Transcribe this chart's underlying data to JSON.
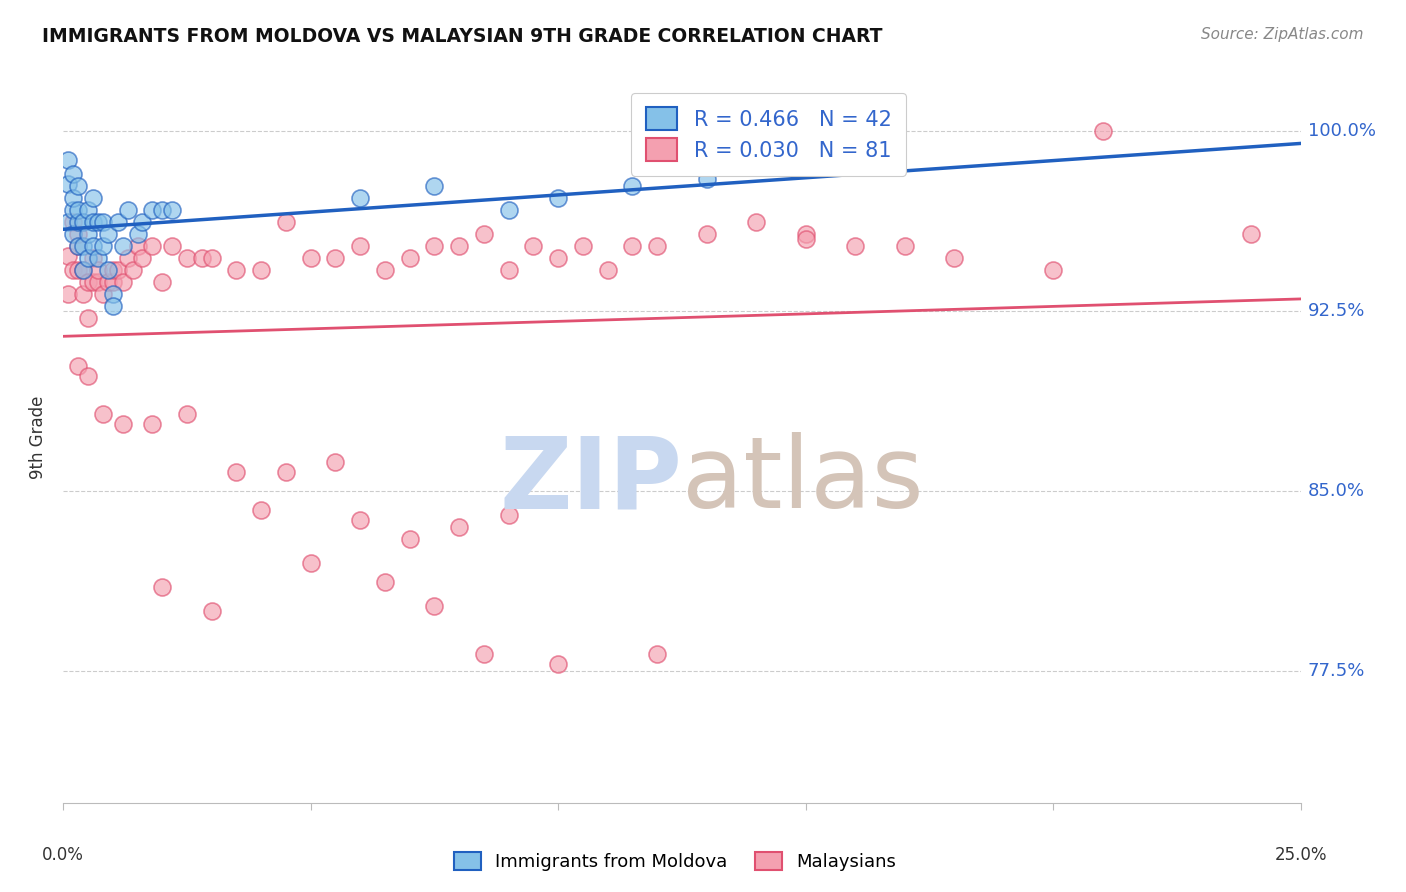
{
  "title": "IMMIGRANTS FROM MOLDOVA VS MALAYSIAN 9TH GRADE CORRELATION CHART",
  "source": "Source: ZipAtlas.com",
  "ylabel": "9th Grade",
  "legend1_label": "Immigrants from Moldova",
  "legend2_label": "Malaysians",
  "R1": 0.466,
  "N1": 42,
  "R2": 0.03,
  "N2": 81,
  "color_blue": "#85c1e8",
  "color_pink": "#f4a0b0",
  "color_blue_line": "#2060c0",
  "color_pink_line": "#e05070",
  "watermark_zip_color": "#c8d8f0",
  "watermark_atlas_color": "#d0c8c0",
  "ytick_labels": [
    "77.5%",
    "85.0%",
    "92.5%",
    "100.0%"
  ],
  "ytick_values": [
    0.775,
    0.85,
    0.925,
    1.0
  ],
  "xlim": [
    0.0,
    0.25
  ],
  "ylim": [
    0.72,
    1.025
  ],
  "blue_x": [
    0.001,
    0.001,
    0.001,
    0.002,
    0.002,
    0.002,
    0.002,
    0.003,
    0.003,
    0.003,
    0.003,
    0.004,
    0.004,
    0.004,
    0.005,
    0.005,
    0.005,
    0.006,
    0.006,
    0.006,
    0.007,
    0.007,
    0.008,
    0.008,
    0.009,
    0.009,
    0.01,
    0.01,
    0.011,
    0.012,
    0.013,
    0.015,
    0.016,
    0.018,
    0.02,
    0.022,
    0.06,
    0.075,
    0.09,
    0.1,
    0.115,
    0.13
  ],
  "blue_y": [
    0.962,
    0.978,
    0.988,
    0.957,
    0.967,
    0.972,
    0.982,
    0.952,
    0.962,
    0.967,
    0.977,
    0.942,
    0.952,
    0.962,
    0.947,
    0.957,
    0.967,
    0.952,
    0.962,
    0.972,
    0.947,
    0.962,
    0.952,
    0.962,
    0.942,
    0.957,
    0.932,
    0.927,
    0.962,
    0.952,
    0.967,
    0.957,
    0.962,
    0.967,
    0.967,
    0.967,
    0.972,
    0.977,
    0.967,
    0.972,
    0.977,
    0.98
  ],
  "pink_x": [
    0.001,
    0.001,
    0.002,
    0.002,
    0.003,
    0.003,
    0.003,
    0.004,
    0.004,
    0.005,
    0.005,
    0.006,
    0.006,
    0.007,
    0.007,
    0.008,
    0.009,
    0.01,
    0.01,
    0.011,
    0.012,
    0.013,
    0.014,
    0.015,
    0.016,
    0.018,
    0.02,
    0.022,
    0.025,
    0.028,
    0.03,
    0.035,
    0.04,
    0.045,
    0.05,
    0.055,
    0.06,
    0.065,
    0.07,
    0.075,
    0.08,
    0.085,
    0.09,
    0.095,
    0.1,
    0.105,
    0.11,
    0.115,
    0.12,
    0.13,
    0.14,
    0.15,
    0.16,
    0.17,
    0.18,
    0.21,
    0.24,
    0.003,
    0.005,
    0.008,
    0.012,
    0.018,
    0.025,
    0.035,
    0.045,
    0.055,
    0.065,
    0.075,
    0.085,
    0.1,
    0.12,
    0.04,
    0.06,
    0.08,
    0.15,
    0.2,
    0.02,
    0.03,
    0.05,
    0.07,
    0.09
  ],
  "pink_y": [
    0.948,
    0.932,
    0.942,
    0.962,
    0.942,
    0.952,
    0.957,
    0.932,
    0.942,
    0.922,
    0.937,
    0.937,
    0.947,
    0.937,
    0.942,
    0.932,
    0.937,
    0.937,
    0.942,
    0.942,
    0.937,
    0.947,
    0.942,
    0.952,
    0.947,
    0.952,
    0.937,
    0.952,
    0.947,
    0.947,
    0.947,
    0.942,
    0.942,
    0.962,
    0.947,
    0.947,
    0.952,
    0.942,
    0.947,
    0.952,
    0.952,
    0.957,
    0.942,
    0.952,
    0.947,
    0.952,
    0.942,
    0.952,
    0.952,
    0.957,
    0.962,
    0.957,
    0.952,
    0.952,
    0.947,
    1.0,
    0.957,
    0.902,
    0.898,
    0.882,
    0.878,
    0.878,
    0.882,
    0.858,
    0.858,
    0.862,
    0.812,
    0.802,
    0.782,
    0.778,
    0.782,
    0.842,
    0.838,
    0.835,
    0.955,
    0.942,
    0.81,
    0.8,
    0.82,
    0.83,
    0.84
  ]
}
